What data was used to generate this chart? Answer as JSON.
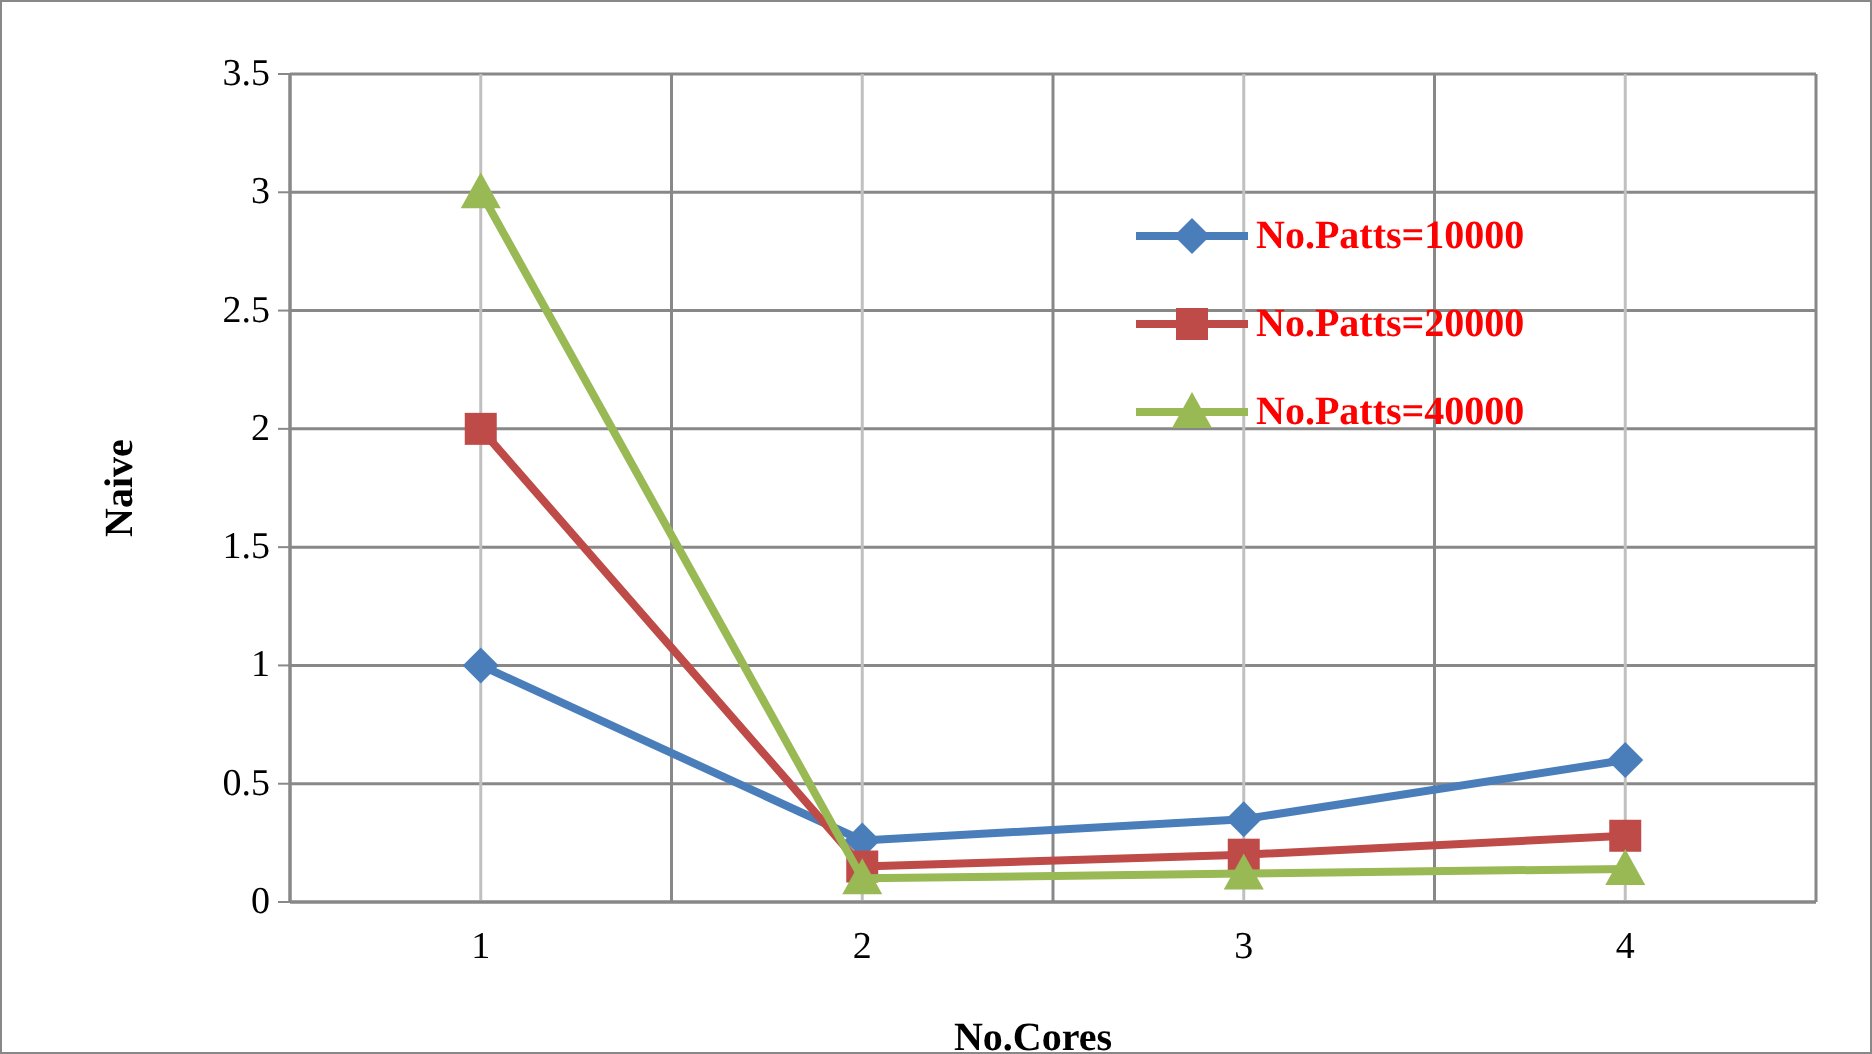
{
  "chart_data": {
    "type": "line",
    "xlabel": "No.Cores",
    "ylabel": "Naive",
    "categories": [
      "1",
      "2",
      "3",
      "4"
    ],
    "series": [
      {
        "name": "No.Patts=10000",
        "color": "#4a7ebb",
        "values": [
          1,
          0.26,
          0.35,
          0.6
        ],
        "marker": "diamond"
      },
      {
        "name": "No.Patts=20000",
        "color": "#be4b48",
        "values": [
          2,
          0.15,
          0.2,
          0.28
        ],
        "marker": "square"
      },
      {
        "name": "No.Patts=40000",
        "color": "#98b954",
        "values": [
          3,
          0.1,
          0.12,
          0.14
        ],
        "marker": "triangle"
      }
    ],
    "ylim": [
      0,
      3.5
    ],
    "yticks": [
      0,
      0.5,
      1,
      1.5,
      2,
      2.5,
      3,
      3.5
    ],
    "grid": true,
    "legend": "top right"
  }
}
